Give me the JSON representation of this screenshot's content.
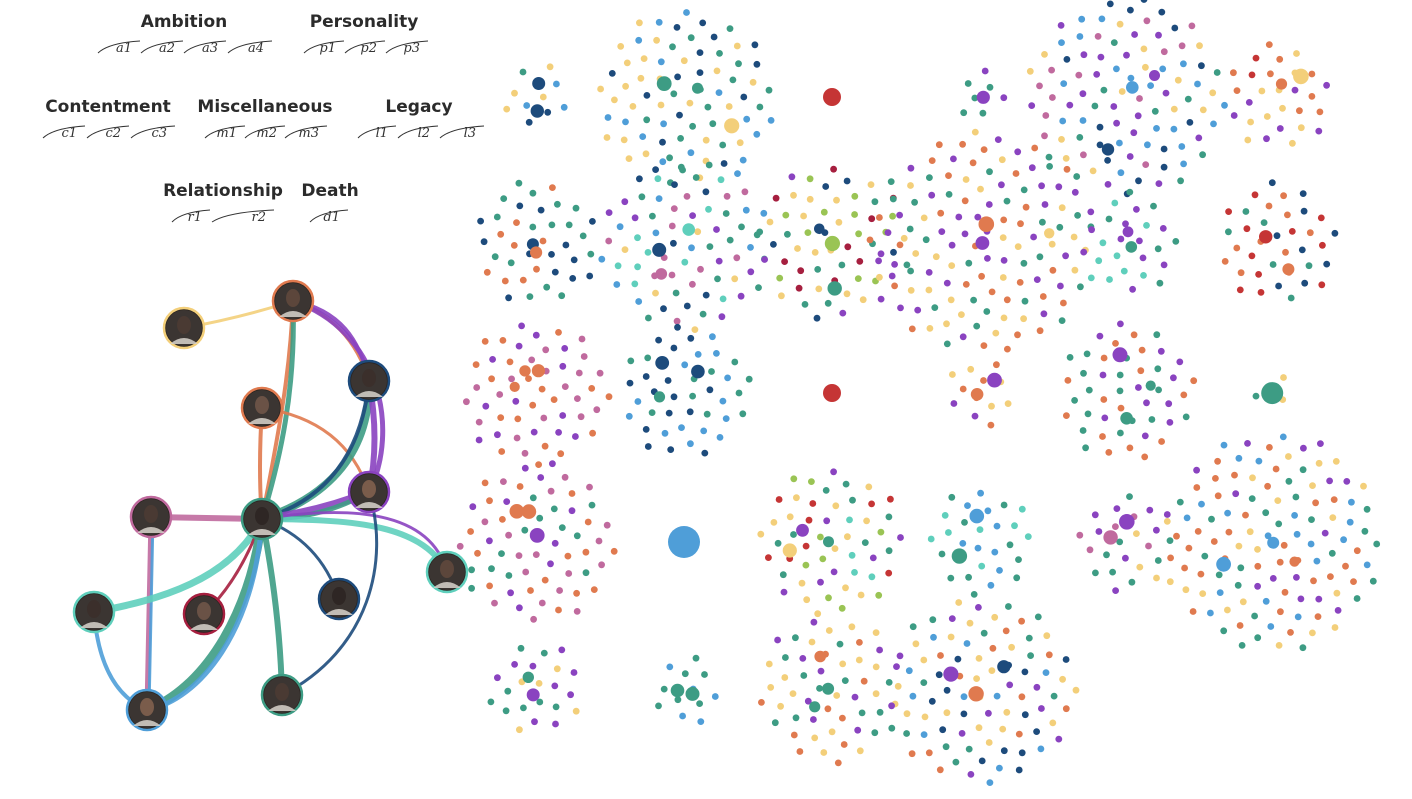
{
  "colors": {
    "orange": "#e07a4f",
    "teal": "#3d9c84",
    "purple": "#8a43c0",
    "navy": "#1d4b7c",
    "yellow": "#f3cf7a",
    "blue": "#4f9ed8",
    "red": "#c53535",
    "lightteal": "#5fcfbc",
    "pink": "#c06a9e",
    "lime": "#9ac454",
    "crimson": "#a61f3f"
  },
  "legend": {
    "categories": [
      {
        "title": "Ambition",
        "themes": [
          "a1",
          "a2",
          "a3",
          "a4"
        ]
      },
      {
        "title": "Personality",
        "themes": [
          "p1",
          "p2",
          "p3"
        ]
      },
      {
        "title": "Contentment",
        "themes": [
          "c1",
          "c2",
          "c3"
        ]
      },
      {
        "title": "Miscellaneous",
        "themes": [
          "m1",
          "m2",
          "m3"
        ]
      },
      {
        "title": "Legacy",
        "themes": [
          "l1",
          "l2",
          "l3"
        ]
      },
      {
        "title": "Relationship",
        "themes": [
          "r1",
          "r2"
        ]
      },
      {
        "title": "Death",
        "themes": [
          "d1"
        ]
      }
    ]
  },
  "network": {
    "nodes": [
      {
        "id": "ensemble",
        "icon": "ensemble-portrait-icon",
        "ring": "yellow"
      },
      {
        "id": "burr",
        "icon": "burr-portrait-icon",
        "ring": "orange"
      },
      {
        "id": "washington",
        "icon": "washington-portrait-icon",
        "ring": "navy"
      },
      {
        "id": "laurens",
        "icon": "laurens-portrait-icon",
        "ring": "orange"
      },
      {
        "id": "hamilton",
        "icon": "hamilton-portrait-icon",
        "ring": "teal"
      },
      {
        "id": "lafayette",
        "icon": "lafayette-portrait-icon",
        "ring": "purple"
      },
      {
        "id": "angelica",
        "icon": "angelica-portrait-icon",
        "ring": "pink"
      },
      {
        "id": "peggy",
        "icon": "peggy-portrait-icon",
        "ring": "lightteal"
      },
      {
        "id": "philip",
        "icon": "philip-portrait-icon",
        "ring": "lightteal"
      },
      {
        "id": "maria",
        "icon": "maria-portrait-icon",
        "ring": "crimson"
      },
      {
        "id": "king",
        "icon": "king-george-portrait-icon",
        "ring": "navy"
      },
      {
        "id": "eliza",
        "icon": "eliza-portrait-icon",
        "ring": "blue"
      },
      {
        "id": "jefferson",
        "icon": "jefferson-portrait-icon",
        "ring": "teal"
      }
    ]
  }
}
